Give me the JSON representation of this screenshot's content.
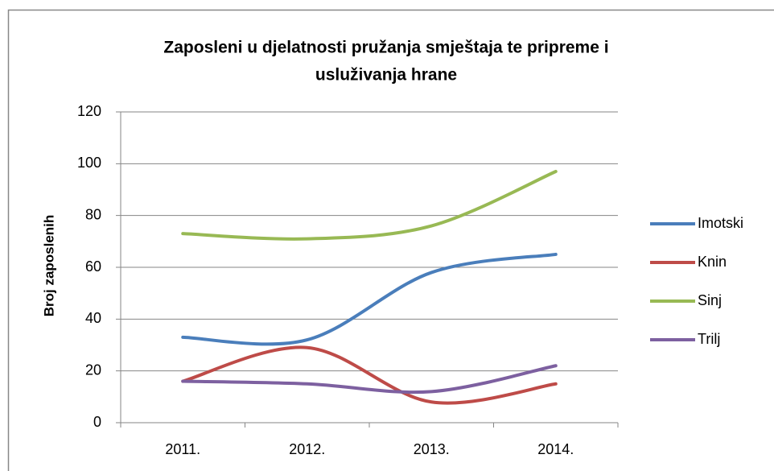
{
  "chart_data": {
    "type": "line",
    "title": [
      "Zaposleni u djelatnosti pružanja smještaja te pripreme i",
      "usluživanja hrane"
    ],
    "ylabel": "Broj zaposlenih",
    "categories": [
      "2011.",
      "2012.",
      "2013.",
      "2014."
    ],
    "series": [
      {
        "name": "Imotski",
        "color": "#4a7ebb",
        "values": [
          33,
          32,
          58,
          65
        ]
      },
      {
        "name": "Knin",
        "color": "#be4b48",
        "values": [
          16,
          29,
          8,
          15
        ]
      },
      {
        "name": "Sinj",
        "color": "#98b954",
        "values": [
          73,
          71,
          76,
          97
        ]
      },
      {
        "name": "Trilj",
        "color": "#7d60a0",
        "values": [
          16,
          15,
          12,
          22
        ]
      }
    ],
    "ylim": [
      0,
      120
    ],
    "yticks": [
      0,
      20,
      40,
      60,
      80,
      100,
      120
    ],
    "grid": true,
    "legend": "right"
  }
}
